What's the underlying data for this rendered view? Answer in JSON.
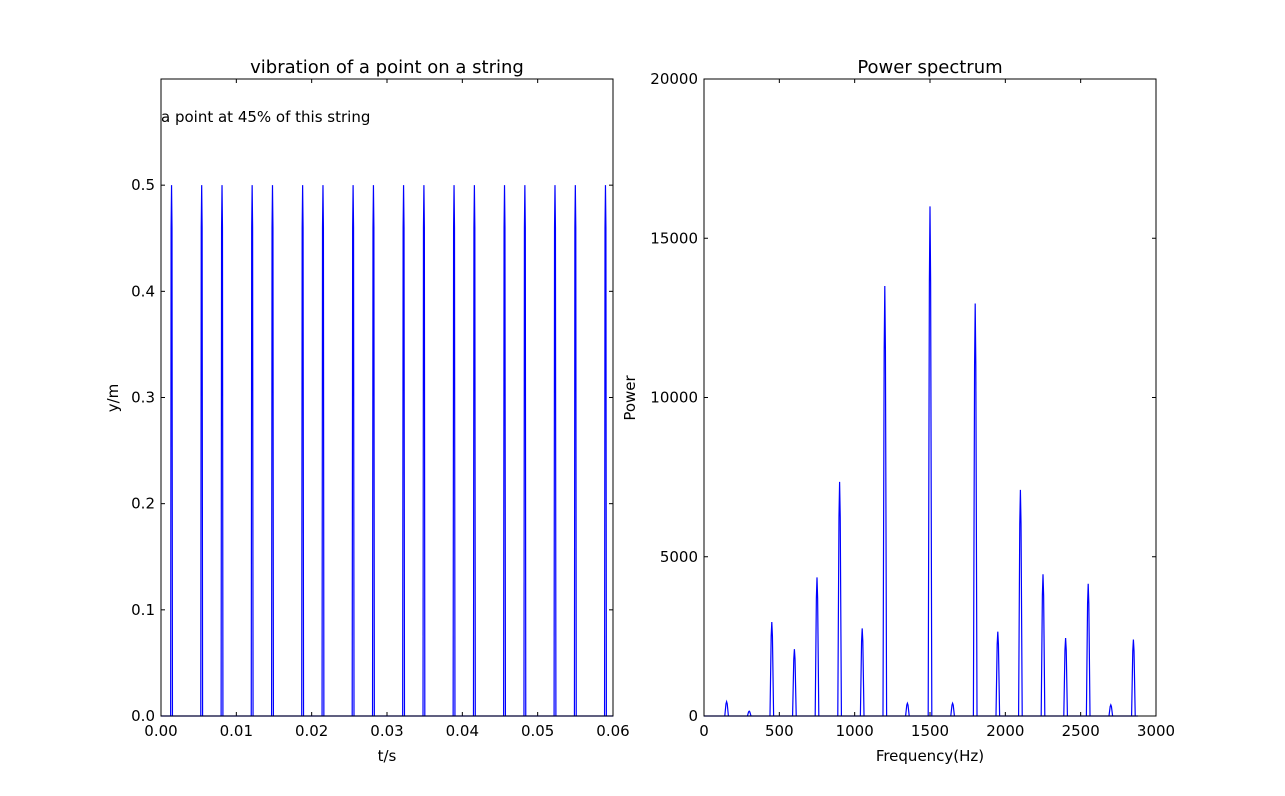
{
  "chart_data": [
    {
      "type": "line",
      "title": "vibration of a point on a string",
      "xlabel": "t/s",
      "ylabel": "y/m",
      "xlim": [
        0.0,
        0.06
      ],
      "ylim": [
        0.0,
        0.6
      ],
      "x_ticks": [
        "0.00",
        "0.01",
        "0.02",
        "0.03",
        "0.04",
        "0.05",
        "0.06"
      ],
      "y_ticks": [
        "0.0",
        "0.1",
        "0.2",
        "0.3",
        "0.4",
        "0.5"
      ],
      "annotation": "a point at 45% of this string",
      "grid": false,
      "color": "#0000ff",
      "pulse_peak": 0.5,
      "pulse_times": [
        0.0014,
        0.0054,
        0.0081,
        0.0121,
        0.0148,
        0.0188,
        0.0215,
        0.0255,
        0.0282,
        0.0322,
        0.0349,
        0.0389,
        0.0416,
        0.0456,
        0.0483,
        0.0523,
        0.055,
        0.059
      ]
    },
    {
      "type": "line",
      "title": "Power spectrum",
      "xlabel": "Frequency(Hz)",
      "ylabel": "Power",
      "xlim": [
        0,
        3000
      ],
      "ylim": [
        0,
        20000
      ],
      "x_ticks": [
        "0",
        "500",
        "1000",
        "1500",
        "2000",
        "2500",
        "3000"
      ],
      "y_ticks": [
        "0",
        "5000",
        "10000",
        "15000",
        "20000"
      ],
      "grid": false,
      "color": "#0000ff",
      "peaks": [
        {
          "f": 150,
          "power": 450
        },
        {
          "f": 300,
          "power": 150
        },
        {
          "f": 450,
          "power": 2950
        },
        {
          "f": 600,
          "power": 2100
        },
        {
          "f": 750,
          "power": 4350
        },
        {
          "f": 900,
          "power": 7350
        },
        {
          "f": 1050,
          "power": 2750
        },
        {
          "f": 1200,
          "power": 13500
        },
        {
          "f": 1350,
          "power": 400
        },
        {
          "f": 1500,
          "power": 16000
        },
        {
          "f": 1650,
          "power": 400
        },
        {
          "f": 1800,
          "power": 12950
        },
        {
          "f": 1950,
          "power": 2650
        },
        {
          "f": 2100,
          "power": 7100
        },
        {
          "f": 2250,
          "power": 4450
        },
        {
          "f": 2400,
          "power": 2450
        },
        {
          "f": 2550,
          "power": 4150
        },
        {
          "f": 2700,
          "power": 350
        },
        {
          "f": 2850,
          "power": 2400
        }
      ]
    }
  ]
}
